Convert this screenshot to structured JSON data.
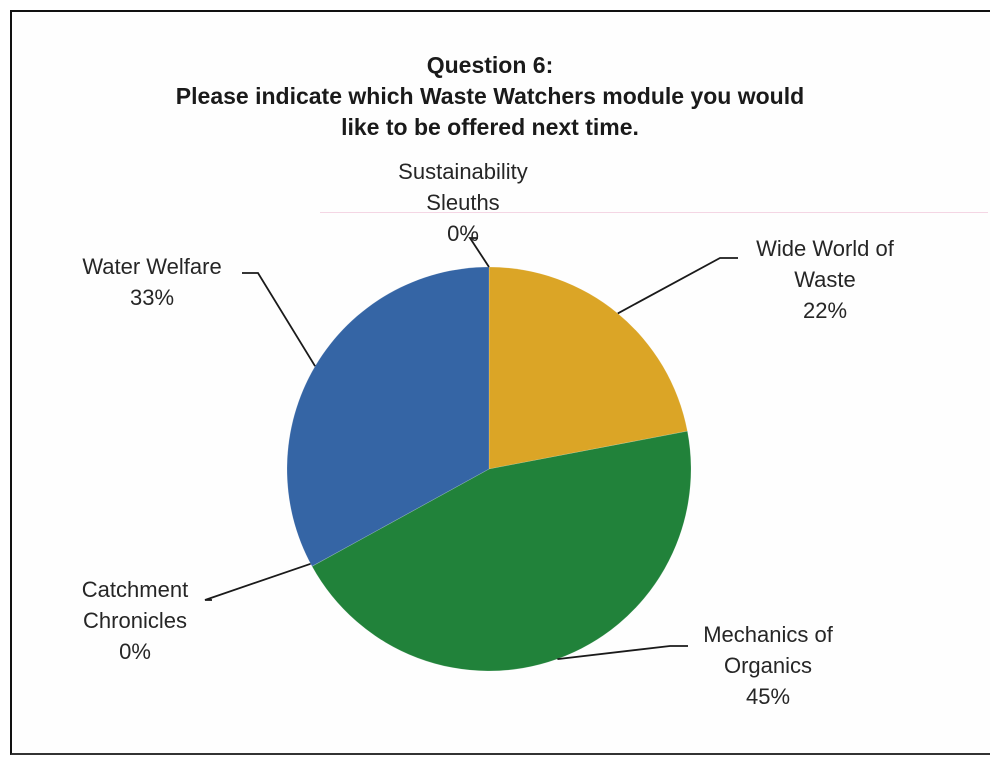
{
  "chart_data": {
    "type": "pie",
    "title_lines": [
      "Question 6:",
      "Please indicate which Waste Watchers module you would",
      "like to be offered next time."
    ],
    "slices": [
      {
        "name_lines": [
          "Wide World of",
          "Waste"
        ],
        "percent_label": "22%",
        "value": 22,
        "color": "#dba526"
      },
      {
        "name_lines": [
          "Mechanics of",
          "Organics"
        ],
        "percent_label": "45%",
        "value": 45,
        "color": "#21823a"
      },
      {
        "name_lines": [
          "Catchment",
          "Chronicles"
        ],
        "percent_label": "0%",
        "value": 0,
        "color": "#2d66a8"
      },
      {
        "name_lines": [
          "Water Welfare"
        ],
        "percent_label": "33%",
        "value": 33,
        "color": "#3565a5"
      },
      {
        "name_lines": [
          "Sustainability",
          "Sleuths"
        ],
        "percent_label": "0%",
        "value": 0,
        "color": "#3565a5"
      }
    ]
  }
}
